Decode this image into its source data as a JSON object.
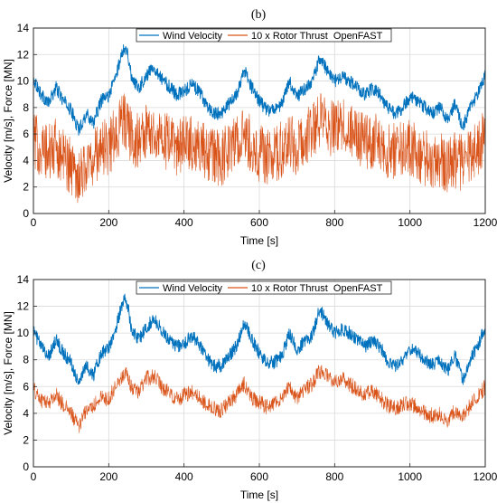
{
  "chart_data": [
    {
      "type": "line",
      "panel_label": "(b)",
      "xlabel": "Time [s]",
      "ylabel": "Velocity [m/s], Force [MN]",
      "xlim": [
        0,
        1200
      ],
      "ylim": [
        0,
        14
      ],
      "xticks": [
        0,
        200,
        400,
        600,
        800,
        1000,
        1200
      ],
      "yticks": [
        0,
        2,
        4,
        6,
        8,
        10,
        12,
        14
      ],
      "grid": true,
      "legend_position": "top-right",
      "series": [
        {
          "name": "Wind Velocity",
          "color": "#0072BD",
          "noise": 0.5,
          "x": [
            0,
            20,
            40,
            60,
            80,
            100,
            120,
            140,
            160,
            180,
            200,
            220,
            240,
            250,
            260,
            280,
            300,
            320,
            340,
            360,
            380,
            400,
            420,
            440,
            460,
            480,
            500,
            520,
            540,
            560,
            580,
            600,
            620,
            640,
            660,
            680,
            700,
            720,
            740,
            760,
            780,
            800,
            820,
            840,
            860,
            880,
            900,
            920,
            940,
            960,
            980,
            1000,
            1020,
            1040,
            1060,
            1080,
            1100,
            1120,
            1140,
            1160,
            1180,
            1200
          ],
          "values": [
            10.2,
            9.0,
            8.3,
            9.5,
            8.5,
            7.8,
            6.3,
            7.5,
            6.9,
            8.5,
            8.9,
            10.5,
            12.6,
            12.2,
            10.3,
            9.5,
            10.4,
            11.1,
            10.2,
            9.6,
            9.0,
            9.2,
            9.8,
            9.2,
            8.2,
            7.5,
            7.6,
            8.3,
            9.0,
            10.8,
            9.5,
            8.5,
            7.8,
            7.8,
            8.3,
            10.0,
            8.8,
            9.4,
            9.8,
            11.8,
            10.8,
            10.0,
            10.3,
            10.0,
            9.5,
            9.0,
            9.4,
            9.0,
            8.0,
            7.5,
            8.0,
            8.8,
            8.5,
            8.0,
            7.6,
            8.0,
            7.2,
            8.3,
            6.5,
            8.0,
            9.0,
            10.5
          ]
        },
        {
          "name": "10 x Rotor Thrust  OpenFAST",
          "color": "#D95319",
          "noise": 2.2,
          "x": [
            0,
            20,
            40,
            60,
            80,
            100,
            120,
            140,
            160,
            180,
            200,
            220,
            240,
            250,
            260,
            280,
            300,
            320,
            340,
            360,
            380,
            400,
            420,
            440,
            460,
            480,
            500,
            520,
            540,
            560,
            580,
            600,
            620,
            640,
            660,
            680,
            700,
            720,
            740,
            760,
            780,
            800,
            820,
            840,
            860,
            880,
            900,
            920,
            940,
            960,
            980,
            1000,
            1020,
            1040,
            1060,
            1080,
            1100,
            1120,
            1140,
            1160,
            1180,
            1200
          ],
          "values": [
            5.6,
            4.8,
            4.5,
            5.0,
            4.2,
            3.6,
            2.9,
            3.6,
            4.2,
            5.0,
            5.0,
            6.0,
            7.2,
            6.6,
            5.8,
            5.5,
            6.2,
            6.3,
            5.6,
            5.3,
            5.0,
            5.2,
            5.4,
            5.1,
            4.6,
            4.4,
            4.1,
            4.8,
            5.4,
            5.9,
            5.1,
            4.6,
            4.3,
            4.5,
            4.8,
            5.6,
            5.0,
            5.6,
            6.2,
            7.0,
            6.6,
            6.4,
            6.6,
            6.3,
            5.8,
            5.5,
            5.6,
            5.3,
            4.8,
            4.6,
            4.8,
            5.0,
            4.6,
            4.2,
            4.0,
            4.1,
            3.7,
            4.1,
            3.8,
            4.6,
            5.0,
            5.8
          ]
        }
      ]
    },
    {
      "type": "line",
      "panel_label": "(c)",
      "xlabel": "Time [s]",
      "ylabel": "Velocity [m/s], Force [MN]",
      "xlim": [
        0,
        1200
      ],
      "ylim": [
        0,
        14
      ],
      "xticks": [
        0,
        200,
        400,
        600,
        800,
        1000,
        1200
      ],
      "yticks": [
        0,
        2,
        4,
        6,
        8,
        10,
        12,
        14
      ],
      "grid": true,
      "legend_position": "top-right",
      "series": [
        {
          "name": "Wind Velocity",
          "color": "#0072BD",
          "noise": 0.5,
          "x": [
            0,
            20,
            40,
            60,
            80,
            100,
            120,
            140,
            160,
            180,
            200,
            220,
            240,
            250,
            260,
            280,
            300,
            320,
            340,
            360,
            380,
            400,
            420,
            440,
            460,
            480,
            500,
            520,
            540,
            560,
            580,
            600,
            620,
            640,
            660,
            680,
            700,
            720,
            740,
            760,
            780,
            800,
            820,
            840,
            860,
            880,
            900,
            920,
            940,
            960,
            980,
            1000,
            1020,
            1040,
            1060,
            1080,
            1100,
            1120,
            1140,
            1160,
            1180,
            1200
          ],
          "values": [
            10.2,
            9.0,
            8.3,
            9.5,
            8.5,
            7.8,
            6.3,
            7.5,
            6.9,
            8.5,
            8.9,
            10.5,
            12.6,
            12.2,
            10.3,
            9.5,
            10.4,
            11.1,
            10.2,
            9.6,
            9.0,
            9.2,
            9.8,
            9.2,
            8.2,
            7.5,
            7.6,
            8.3,
            9.0,
            10.8,
            9.5,
            8.5,
            7.8,
            7.8,
            8.3,
            10.0,
            8.8,
            9.4,
            9.8,
            11.8,
            10.8,
            10.0,
            10.3,
            10.0,
            9.5,
            9.0,
            9.4,
            9.0,
            8.0,
            7.5,
            8.0,
            8.8,
            8.5,
            8.0,
            7.6,
            8.0,
            7.2,
            8.3,
            6.5,
            8.0,
            9.0,
            10.5
          ]
        },
        {
          "name": "10 x Rotor Thrust  OpenFAST",
          "color": "#D95319",
          "noise": 0.6,
          "x": [
            0,
            20,
            40,
            60,
            80,
            100,
            120,
            140,
            160,
            180,
            200,
            220,
            240,
            250,
            260,
            280,
            300,
            320,
            340,
            360,
            380,
            400,
            420,
            440,
            460,
            480,
            500,
            520,
            540,
            560,
            580,
            600,
            620,
            640,
            660,
            680,
            700,
            720,
            740,
            760,
            780,
            800,
            820,
            840,
            860,
            880,
            900,
            920,
            940,
            960,
            980,
            1000,
            1020,
            1040,
            1060,
            1080,
            1100,
            1120,
            1140,
            1160,
            1180,
            1200
          ],
          "values": [
            5.8,
            5.0,
            4.8,
            5.4,
            4.6,
            4.0,
            3.0,
            4.2,
            4.6,
            5.2,
            5.0,
            6.2,
            7.0,
            6.8,
            6.0,
            5.6,
            6.6,
            6.8,
            6.0,
            5.6,
            5.0,
            5.4,
            5.6,
            5.2,
            4.6,
            4.4,
            4.2,
            4.8,
            5.4,
            6.2,
            5.2,
            4.8,
            4.5,
            4.8,
            5.0,
            6.0,
            5.2,
            5.8,
            6.2,
            7.2,
            6.8,
            6.5,
            6.6,
            6.2,
            5.8,
            5.4,
            5.6,
            5.2,
            4.6,
            4.4,
            4.6,
            4.8,
            4.4,
            4.0,
            3.8,
            4.0,
            3.5,
            4.2,
            3.6,
            4.6,
            5.2,
            6.0
          ]
        }
      ]
    }
  ]
}
